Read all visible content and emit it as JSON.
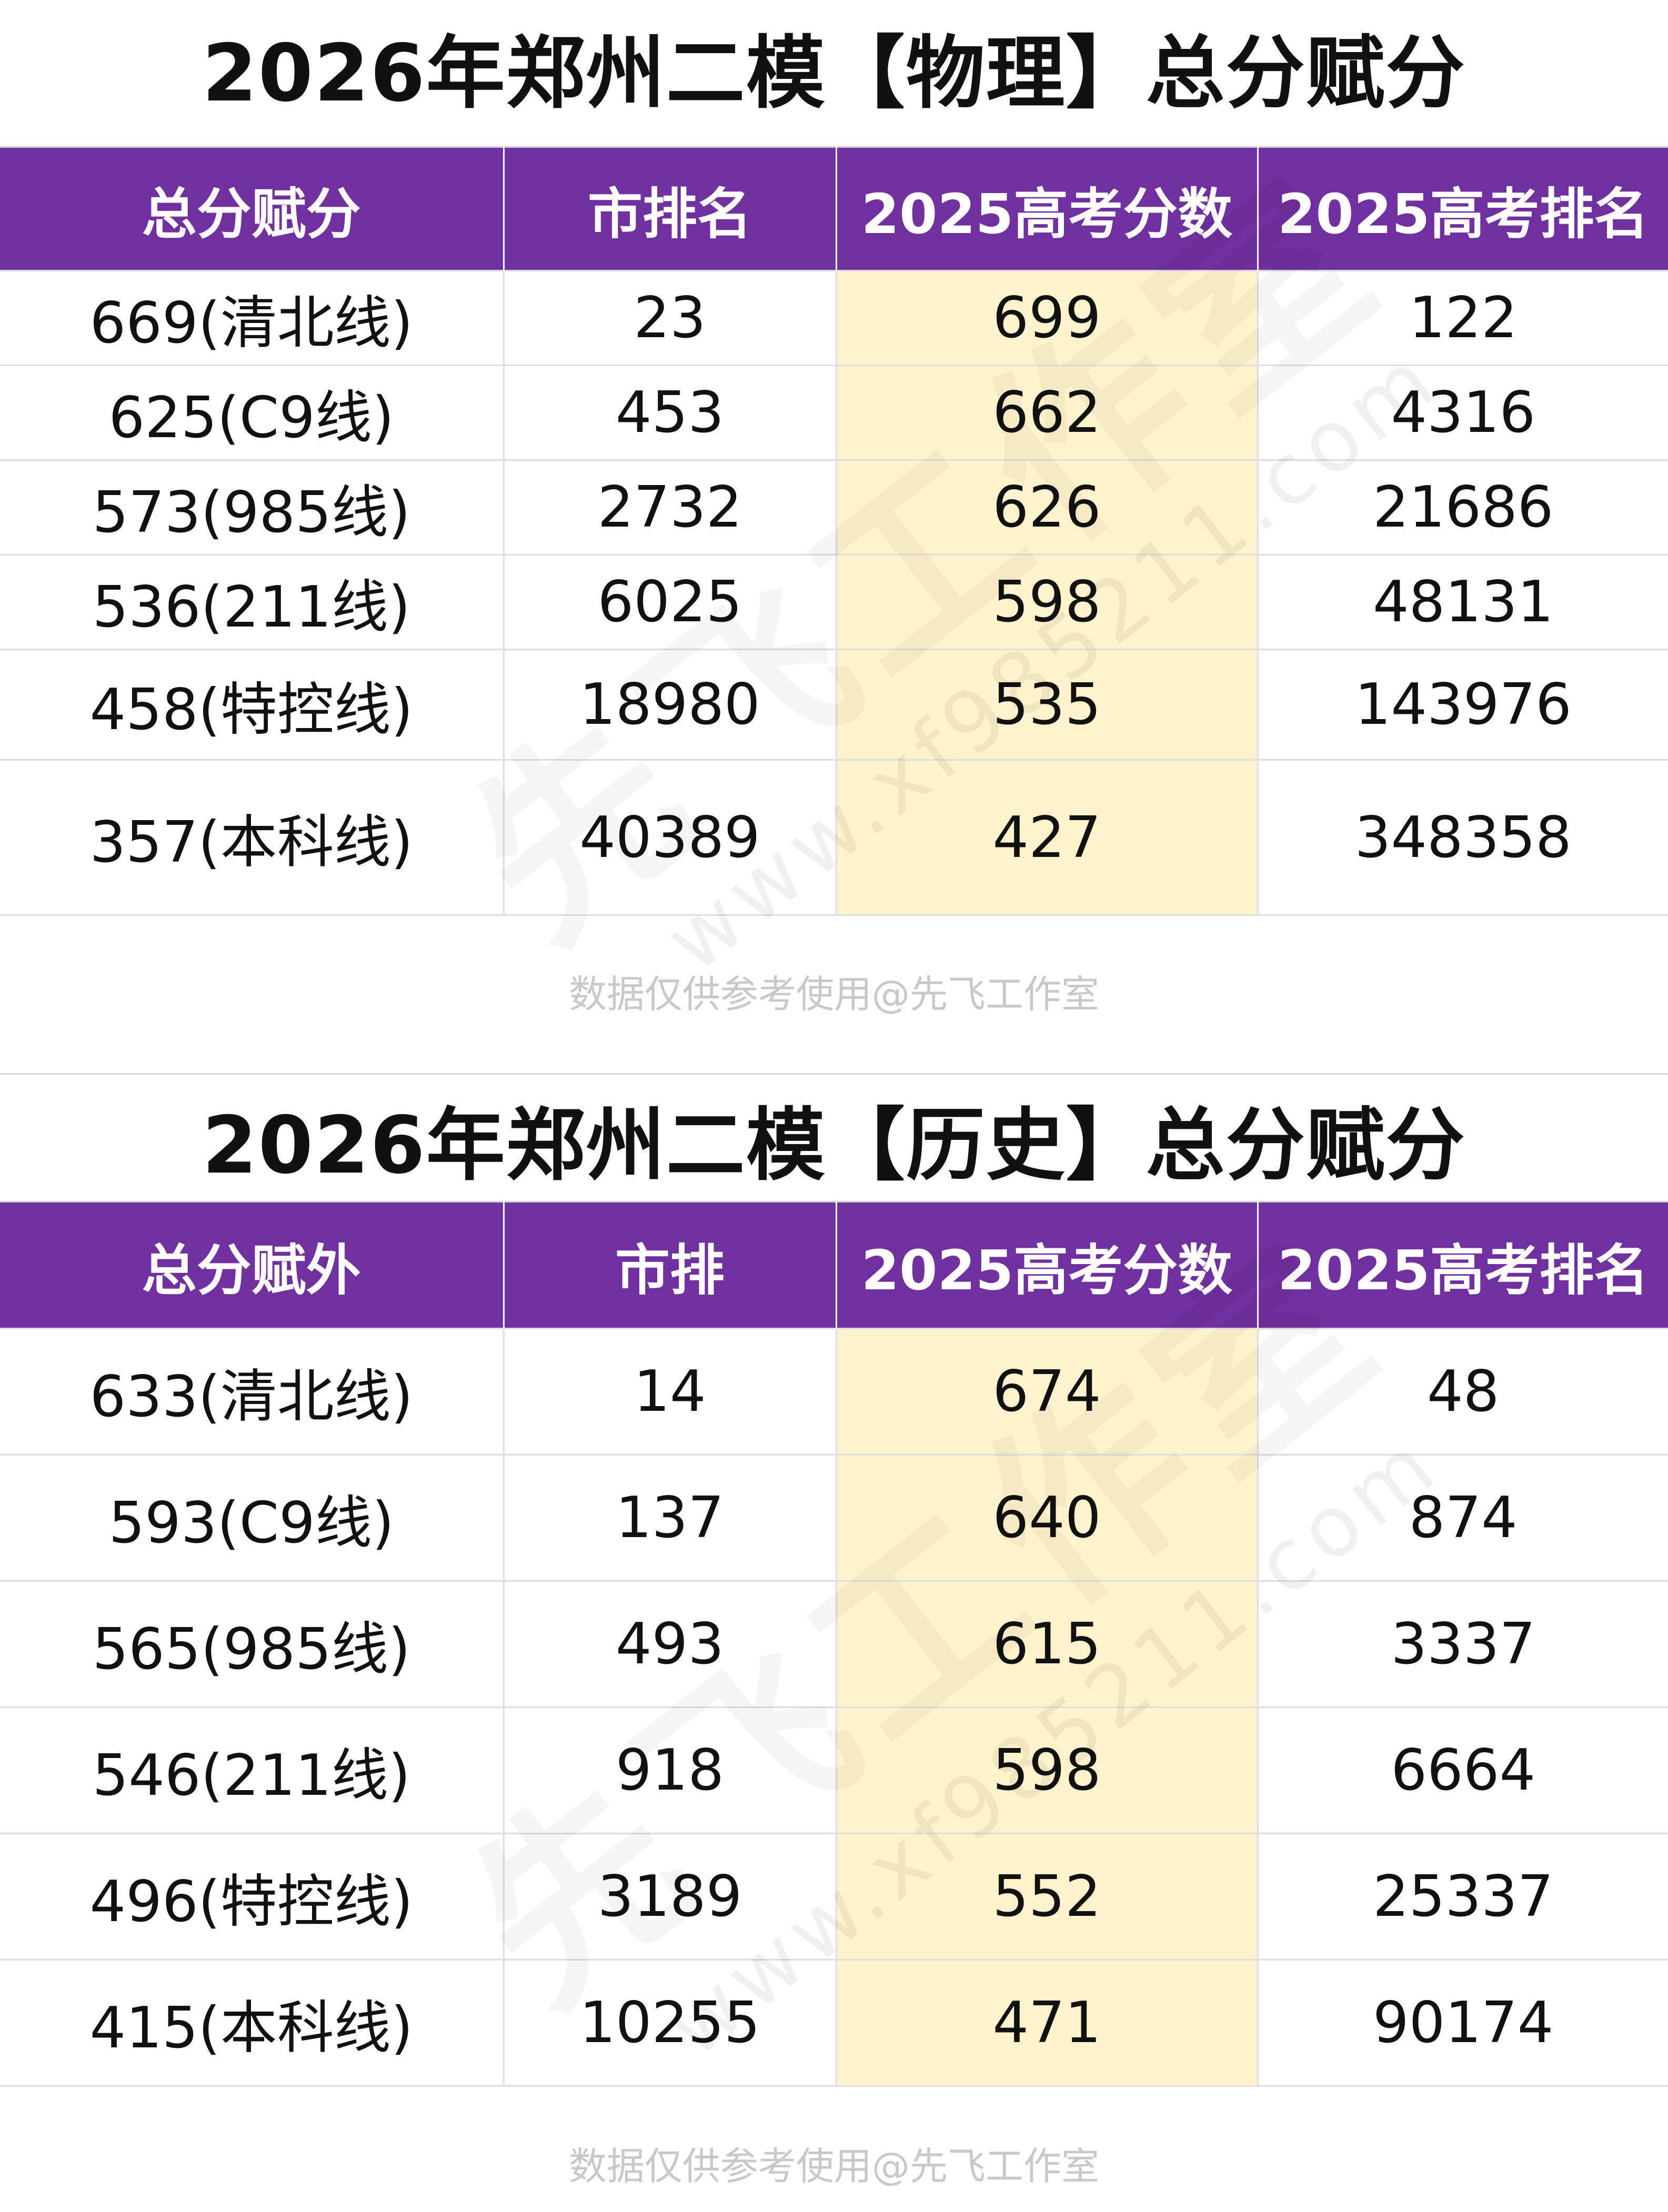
{
  "tables": [
    {
      "title": "2026年郑州二模【物理】总分赋分",
      "headers": [
        "总分赋分",
        "市排名",
        "2025高考分数",
        "2025高考排名"
      ],
      "rows": [
        [
          "669(清北线)",
          "23",
          "699",
          "122"
        ],
        [
          "625(C9线)",
          "453",
          "662",
          "4316"
        ],
        [
          "573(985线)",
          "2732",
          "626",
          "21686"
        ],
        [
          "536(211线)",
          "6025",
          "598",
          "48131"
        ],
        [
          "458(特控线)",
          "18980",
          "535",
          "143976"
        ],
        [
          "357(本科线)",
          "40389",
          "427",
          "348358"
        ]
      ],
      "footnote": "数据仅供参考使用@先飞工作室"
    },
    {
      "title": "2026年郑州二模【历史】总分赋分",
      "headers": [
        "总分赋外",
        "市排",
        "2025高考分数",
        "2025高考排名"
      ],
      "rows": [
        [
          "633(清北线)",
          "14",
          "674",
          "48"
        ],
        [
          "593(C9线)",
          "137",
          "640",
          "874"
        ],
        [
          "565(985线)",
          "493",
          "615",
          "3337"
        ],
        [
          "546(211线)",
          "918",
          "598",
          "6664"
        ],
        [
          "496(特控线)",
          "3189",
          "552",
          "25337"
        ],
        [
          "415(本科线)",
          "10255",
          "471",
          "90174"
        ]
      ],
      "footnote": "数据仅供参考使用@先飞工作室"
    }
  ],
  "watermark": {
    "text": "先飞工作室",
    "url": "www.xf985211.com"
  },
  "colors": {
    "header_bg": "#7030a0",
    "header_text": "#ffffff",
    "highlight_column_bg": "#fff2cc",
    "footnote_text": "#c8c8c8"
  }
}
